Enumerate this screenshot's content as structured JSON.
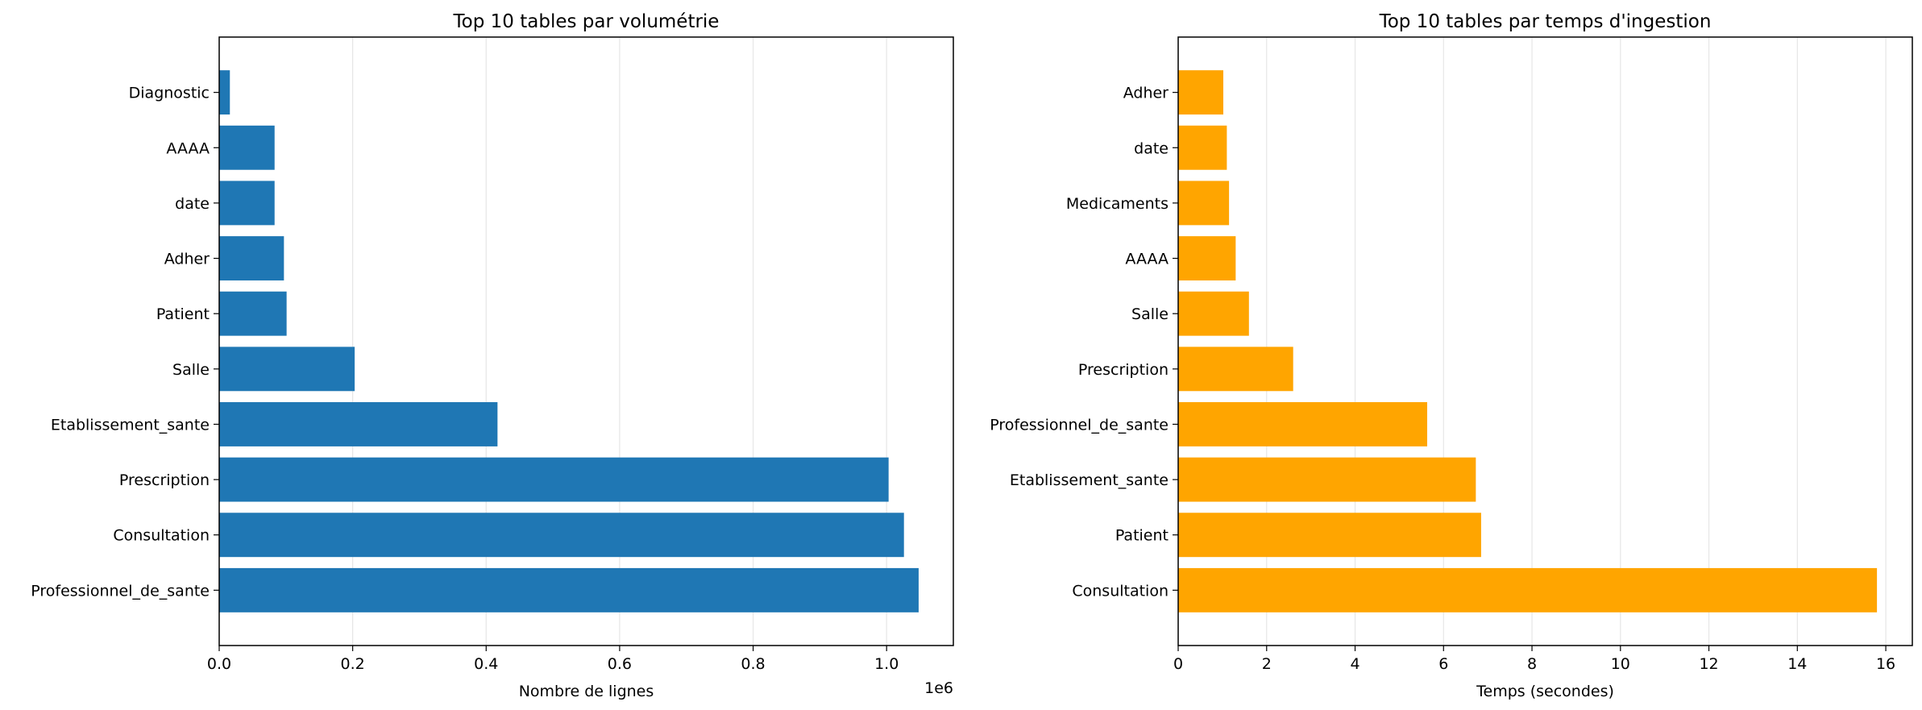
{
  "chart_data": [
    {
      "type": "bar",
      "orientation": "horizontal",
      "title": "Top 10 tables par volumétrie",
      "xlabel": "Nombre de lignes",
      "ylabel": "",
      "x_offset_label": "1e6",
      "x_multiplier": 1000000,
      "xlim": [
        0,
        1100000
      ],
      "x_ticks": [
        0,
        200000,
        400000,
        600000,
        800000,
        1000000
      ],
      "x_tick_labels": [
        "0.0",
        "0.2",
        "0.4",
        "0.6",
        "0.8",
        "1.0"
      ],
      "grid": "x",
      "color": "#1f77b4",
      "categories": [
        "Professionnel_de_sante",
        "Consultation",
        "Prescription",
        "Etablissement_sante",
        "Salle",
        "Patient",
        "Adher",
        "date",
        "AAAA",
        "Diagnostic"
      ],
      "values": [
        1048000,
        1026000,
        1003000,
        417000,
        203000,
        101000,
        97000,
        83000,
        83000,
        16000
      ]
    },
    {
      "type": "bar",
      "orientation": "horizontal",
      "title": "Top 10 tables par temps d'ingestion",
      "xlabel": "Temps (secondes)",
      "ylabel": "",
      "xlim": [
        0,
        16.6
      ],
      "x_ticks": [
        0,
        2,
        4,
        6,
        8,
        10,
        12,
        14,
        16
      ],
      "x_tick_labels": [
        "0",
        "2",
        "4",
        "6",
        "8",
        "10",
        "12",
        "14",
        "16"
      ],
      "grid": "x",
      "color": "#ffa500",
      "categories": [
        "Consultation",
        "Patient",
        "Etablissement_sante",
        "Professionnel_de_sante",
        "Prescription",
        "Salle",
        "AAAA",
        "Medicaments",
        "date",
        "Adher"
      ],
      "values": [
        15.8,
        6.85,
        6.73,
        5.63,
        2.6,
        1.6,
        1.3,
        1.15,
        1.1,
        1.02
      ]
    }
  ]
}
